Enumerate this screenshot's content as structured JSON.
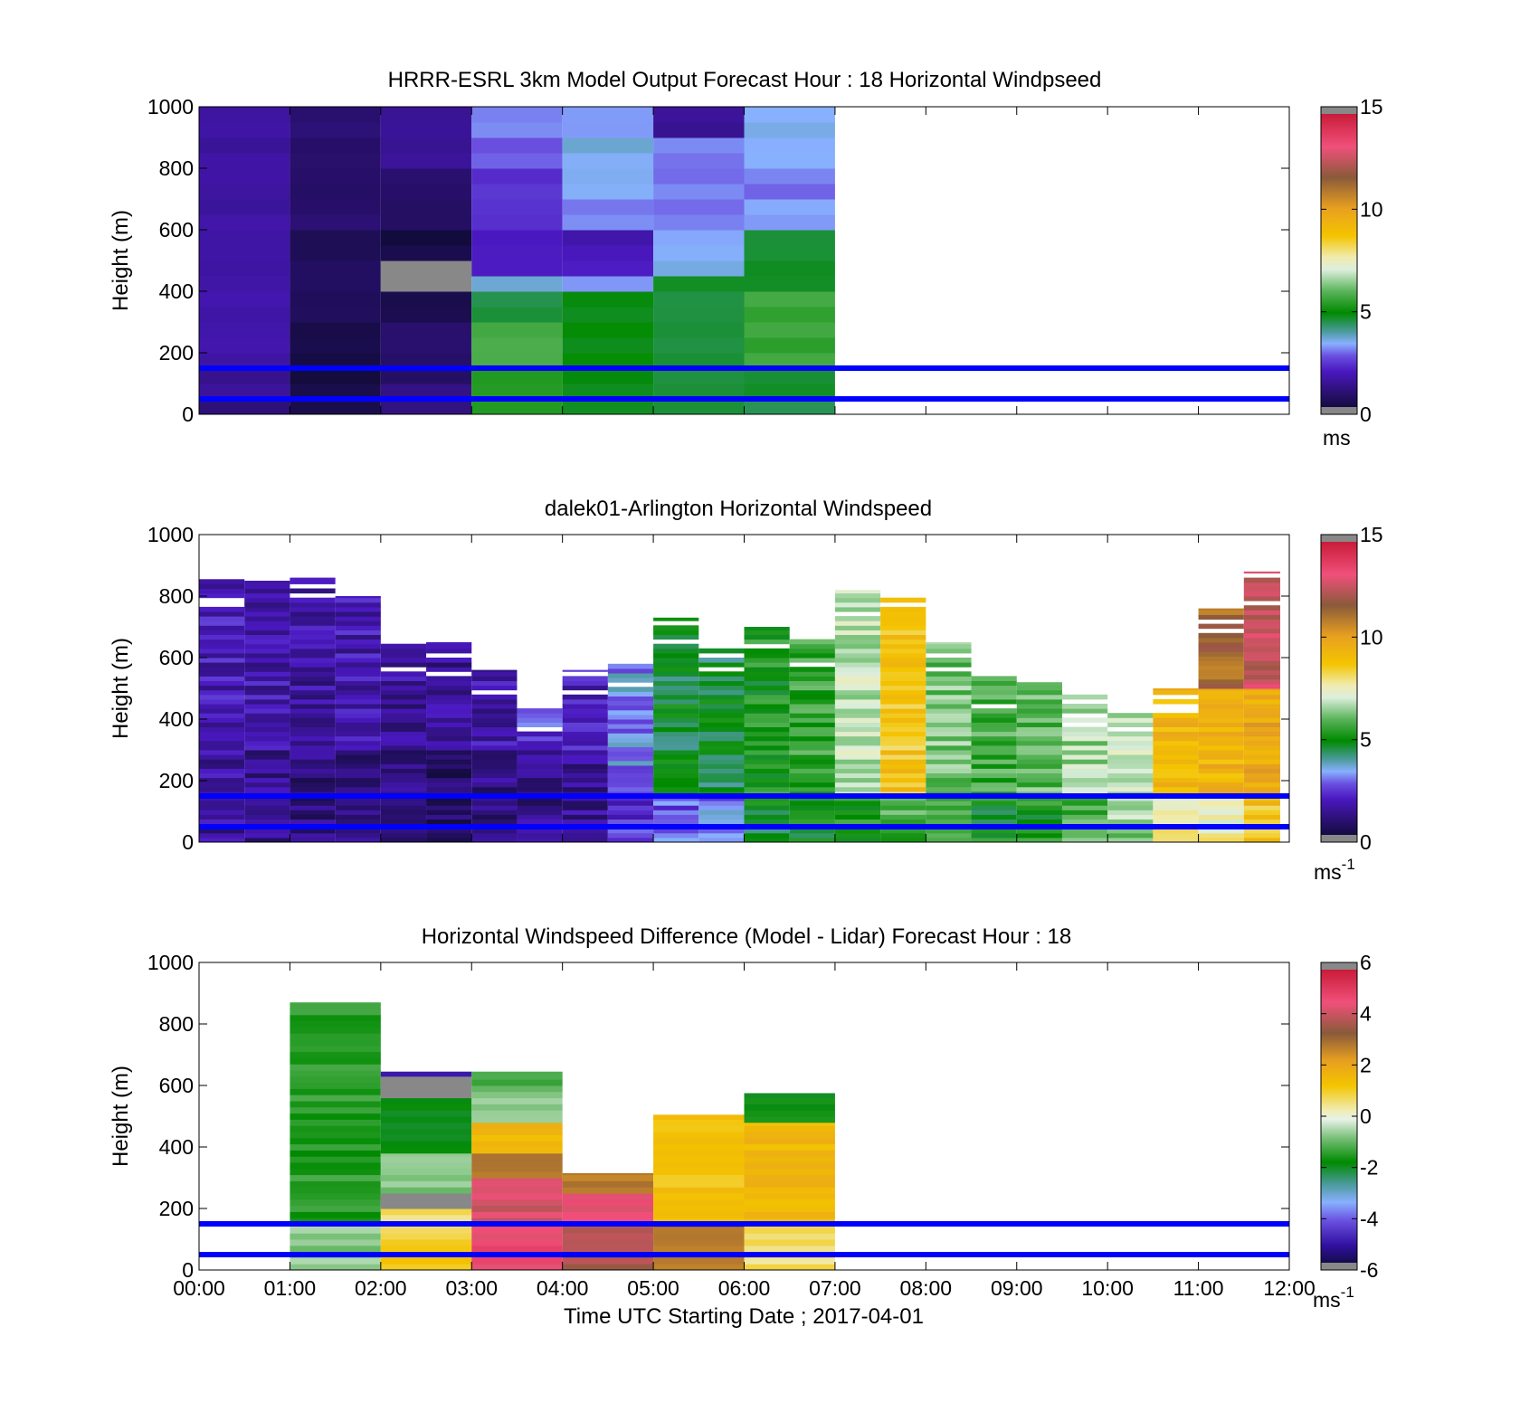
{
  "figure": {
    "xlabel": "Time UTC  Starting Date ; 2017-04-01",
    "x_tick_labels": [
      "00:00",
      "01:00",
      "02:00",
      "03:00",
      "04:00",
      "05:00",
      "06:00",
      "07:00",
      "08:00",
      "09:00",
      "10:00",
      "11:00",
      "12:00"
    ],
    "x_range_hours": [
      0,
      12
    ]
  },
  "chart_data": [
    {
      "type": "heatmap",
      "title": "HRRR-ESRL 3km Model Output   Forecast Hour : 18 Horizontal Windpseed",
      "ylabel": "Height (m)",
      "ylim": [
        0,
        1000
      ],
      "yticks": [
        0,
        200,
        400,
        600,
        800,
        1000
      ],
      "colorbar": {
        "min": 0,
        "max": 15,
        "ticks": [
          0,
          5,
          10,
          15
        ],
        "unit": "ms",
        "unit_superscript": ""
      },
      "reference_lines_m": [
        50,
        150
      ],
      "reference_line_color": "#0000ff",
      "columns": [
        {
          "x0": 0,
          "x1": 1,
          "ytop": 1000,
          "cells": [
            {
              "y0": 0,
              "y1": 50,
              "v": 1.3
            },
            {
              "y0": 50,
              "y1": 150,
              "v": 1.5
            },
            {
              "y0": 150,
              "y1": 400,
              "v": 1.8
            },
            {
              "y0": 400,
              "y1": 1000,
              "v": 1.7
            }
          ]
        },
        {
          "x0": 1,
          "x1": 2,
          "ytop": 1000,
          "cells": [
            {
              "y0": 0,
              "y1": 300,
              "v": 0.4
            },
            {
              "y0": 300,
              "y1": 600,
              "v": 0.7
            },
            {
              "y0": 600,
              "y1": 1000,
              "v": 1.0
            }
          ]
        },
        {
          "x0": 2,
          "x1": 3,
          "ytop": 1000,
          "cells": [
            {
              "y0": 0,
              "y1": 100,
              "v": 1.2
            },
            {
              "y0": 100,
              "y1": 300,
              "v": 1.0
            },
            {
              "y0": 300,
              "y1": 400,
              "v": 0.6
            },
            {
              "y0": 400,
              "y1": 500,
              "v": "missing"
            },
            {
              "y0": 500,
              "y1": 600,
              "v": 0.4
            },
            {
              "y0": 600,
              "y1": 800,
              "v": 0.9
            },
            {
              "y0": 800,
              "y1": 1000,
              "v": 1.6
            }
          ]
        },
        {
          "x0": 3,
          "x1": 4,
          "ytop": 1000,
          "cells": [
            {
              "y0": 0,
              "y1": 150,
              "v": 5.4
            },
            {
              "y0": 150,
              "y1": 300,
              "v": 5.8
            },
            {
              "y0": 300,
              "y1": 400,
              "v": 4.5
            },
            {
              "y0": 400,
              "y1": 450,
              "v": 3.6
            },
            {
              "y0": 450,
              "y1": 600,
              "v": 2.1
            },
            {
              "y0": 600,
              "y1": 800,
              "v": 2.4
            },
            {
              "y0": 800,
              "y1": 900,
              "v": 2.9
            },
            {
              "y0": 900,
              "y1": 1000,
              "v": 3.2
            }
          ]
        },
        {
          "x0": 4,
          "x1": 5,
          "ytop": 1000,
          "cells": [
            {
              "y0": 0,
              "y1": 150,
              "v": 4.8
            },
            {
              "y0": 150,
              "y1": 400,
              "v": 4.9
            },
            {
              "y0": 400,
              "y1": 450,
              "v": 3.4
            },
            {
              "y0": 450,
              "y1": 500,
              "v": 2.3
            },
            {
              "y0": 500,
              "y1": 600,
              "v": 1.9
            },
            {
              "y0": 600,
              "y1": 700,
              "v": 3.2
            },
            {
              "y0": 700,
              "y1": 800,
              "v": 3.5
            },
            {
              "y0": 800,
              "y1": 900,
              "v": 3.6
            },
            {
              "y0": 900,
              "y1": 1000,
              "v": 3.2
            }
          ]
        },
        {
          "x0": 5,
          "x1": 6,
          "ytop": 1000,
          "cells": [
            {
              "y0": 0,
              "y1": 150,
              "v": 4.5
            },
            {
              "y0": 150,
              "y1": 450,
              "v": 4.7
            },
            {
              "y0": 450,
              "y1": 500,
              "v": 3.7
            },
            {
              "y0": 500,
              "y1": 600,
              "v": 3.4
            },
            {
              "y0": 600,
              "y1": 900,
              "v": 3.1
            },
            {
              "y0": 900,
              "y1": 1000,
              "v": 1.6
            }
          ]
        },
        {
          "x0": 6,
          "x1": 7,
          "ytop": 1000,
          "cells": [
            {
              "y0": 0,
              "y1": 150,
              "v": 4.6
            },
            {
              "y0": 150,
              "y1": 400,
              "v": 5.6
            },
            {
              "y0": 400,
              "y1": 600,
              "v": 4.7
            },
            {
              "y0": 600,
              "y1": 700,
              "v": 3.4
            },
            {
              "y0": 700,
              "y1": 800,
              "v": 3.1
            },
            {
              "y0": 800,
              "y1": 900,
              "v": 3.4
            },
            {
              "y0": 900,
              "y1": 1000,
              "v": 3.6
            }
          ]
        }
      ]
    },
    {
      "type": "heatmap",
      "title": "dalek01-Arlington  Horizontal Windspeed",
      "ylabel": "Height (m)",
      "ylim": [
        0,
        1000
      ],
      "yticks": [
        0,
        200,
        400,
        600,
        800,
        1000
      ],
      "colorbar": {
        "min": 0,
        "max": 15,
        "ticks": [
          0,
          5,
          10,
          15
        ],
        "unit": "ms",
        "unit_superscript": "-1"
      },
      "reference_lines_m": [
        50,
        150
      ],
      "reference_line_color": "#0000ff",
      "columns": [
        {
          "x0": 0.0,
          "x1": 0.5,
          "ytop": 880,
          "cells": [
            {
              "y0": 0,
              "y1": 300,
              "v": 1.6
            },
            {
              "y0": 300,
              "y1": 880,
              "v": 2.0
            }
          ]
        },
        {
          "x0": 0.5,
          "x1": 1.0,
          "ytop": 850,
          "cells": [
            {
              "y0": 0,
              "y1": 300,
              "v": 1.4
            },
            {
              "y0": 300,
              "y1": 850,
              "v": 1.9
            }
          ]
        },
        {
          "x0": 1.0,
          "x1": 1.5,
          "ytop": 860,
          "cells": [
            {
              "y0": 0,
              "y1": 300,
              "v": 1.2
            },
            {
              "y0": 300,
              "y1": 860,
              "v": 1.7
            }
          ]
        },
        {
          "x0": 1.5,
          "x1": 2.0,
          "ytop": 800,
          "cells": [
            {
              "y0": 0,
              "y1": 300,
              "v": 1.3
            },
            {
              "y0": 300,
              "y1": 800,
              "v": 1.9
            }
          ]
        },
        {
          "x0": 2.0,
          "x1": 2.5,
          "ytop": 650,
          "cells": [
            {
              "y0": 0,
              "y1": 300,
              "v": 1.2
            },
            {
              "y0": 300,
              "y1": 650,
              "v": 1.6
            }
          ]
        },
        {
          "x0": 2.5,
          "x1": 3.0,
          "ytop": 650,
          "cells": [
            {
              "y0": 0,
              "y1": 300,
              "v": 1.0
            },
            {
              "y0": 300,
              "y1": 650,
              "v": 1.5
            }
          ]
        },
        {
          "x0": 3.0,
          "x1": 3.5,
          "ytop": 560,
          "cells": [
            {
              "y0": 0,
              "y1": 300,
              "v": 1.3
            },
            {
              "y0": 300,
              "y1": 560,
              "v": 1.8
            }
          ]
        },
        {
          "x0": 3.5,
          "x1": 4.0,
          "ytop": 450,
          "cells": [
            {
              "y0": 0,
              "y1": 300,
              "v": 1.4
            },
            {
              "y0": 300,
              "y1": 450,
              "v": 2.6
            }
          ]
        },
        {
          "x0": 4.0,
          "x1": 4.5,
          "ytop": 560,
          "cells": [
            {
              "y0": 0,
              "y1": 300,
              "v": 1.5
            },
            {
              "y0": 300,
              "y1": 560,
              "v": 2.1
            }
          ]
        },
        {
          "x0": 4.5,
          "x1": 5.0,
          "ytop": 580,
          "cells": [
            {
              "y0": 0,
              "y1": 250,
              "v": 2.4
            },
            {
              "y0": 250,
              "y1": 580,
              "v": 3.3
            }
          ]
        },
        {
          "x0": 5.0,
          "x1": 5.5,
          "ytop": 730,
          "cells": [
            {
              "y0": 0,
              "y1": 150,
              "v": 2.9
            },
            {
              "y0": 150,
              "y1": 730,
              "v": 4.7
            }
          ]
        },
        {
          "x0": 5.5,
          "x1": 6.0,
          "ytop": 660,
          "cells": [
            {
              "y0": 0,
              "y1": 150,
              "v": 3.2
            },
            {
              "y0": 150,
              "y1": 660,
              "v": 4.6
            }
          ]
        },
        {
          "x0": 6.0,
          "x1": 6.5,
          "ytop": 700,
          "cells": [
            {
              "y0": 0,
              "y1": 150,
              "v": 4.8
            },
            {
              "y0": 150,
              "y1": 700,
              "v": 5.2
            }
          ]
        },
        {
          "x0": 6.5,
          "x1": 7.0,
          "ytop": 660,
          "cells": [
            {
              "y0": 0,
              "y1": 150,
              "v": 5.0
            },
            {
              "y0": 150,
              "y1": 660,
              "v": 5.5
            }
          ]
        },
        {
          "x0": 7.0,
          "x1": 7.5,
          "ytop": 820,
          "cells": [
            {
              "y0": 0,
              "y1": 150,
              "v": 5.4
            },
            {
              "y0": 150,
              "y1": 820,
              "v": 6.8
            }
          ]
        },
        {
          "x0": 7.5,
          "x1": 8.0,
          "ytop": 800,
          "cells": [
            {
              "y0": 0,
              "y1": 150,
              "v": 5.8
            },
            {
              "y0": 150,
              "y1": 800,
              "v": 8.7
            }
          ]
        },
        {
          "x0": 8.0,
          "x1": 8.5,
          "ytop": 650,
          "cells": [
            {
              "y0": 0,
              "y1": 150,
              "v": 5.6
            },
            {
              "y0": 150,
              "y1": 650,
              "v": 6.2
            }
          ]
        },
        {
          "x0": 8.5,
          "x1": 9.0,
          "ytop": 540,
          "cells": [
            {
              "y0": 0,
              "y1": 150,
              "v": 5.0
            },
            {
              "y0": 150,
              "y1": 540,
              "v": 5.7
            }
          ]
        },
        {
          "x0": 9.0,
          "x1": 9.5,
          "ytop": 520,
          "cells": [
            {
              "y0": 0,
              "y1": 150,
              "v": 5.2
            },
            {
              "y0": 150,
              "y1": 520,
              "v": 6.0
            }
          ]
        },
        {
          "x0": 9.5,
          "x1": 10.0,
          "ytop": 480,
          "cells": [
            {
              "y0": 0,
              "y1": 150,
              "v": 5.9
            },
            {
              "y0": 150,
              "y1": 480,
              "v": 6.6
            }
          ]
        },
        {
          "x0": 10.0,
          "x1": 10.5,
          "ytop": 420,
          "cells": [
            {
              "y0": 0,
              "y1": 150,
              "v": 6.5
            },
            {
              "y0": 150,
              "y1": 420,
              "v": 6.9
            }
          ]
        },
        {
          "x0": 10.5,
          "x1": 11.0,
          "ytop": 500,
          "cells": [
            {
              "y0": 0,
              "y1": 150,
              "v": 7.8
            },
            {
              "y0": 150,
              "y1": 500,
              "v": 9.2
            }
          ]
        },
        {
          "x0": 11.0,
          "x1": 11.5,
          "ytop": 760,
          "cells": [
            {
              "y0": 0,
              "y1": 150,
              "v": 7.6
            },
            {
              "y0": 150,
              "y1": 500,
              "v": 9.3
            },
            {
              "y0": 500,
              "y1": 760,
              "v": 11.2
            }
          ]
        },
        {
          "x0": 11.5,
          "x1": 11.9,
          "ytop": 880,
          "cells": [
            {
              "y0": 0,
              "y1": 150,
              "v": 8.8
            },
            {
              "y0": 150,
              "y1": 500,
              "v": 9.7
            },
            {
              "y0": 500,
              "y1": 880,
              "v": 12.5
            }
          ]
        }
      ]
    },
    {
      "type": "heatmap",
      "title": "Horizontal Windspeed Difference (Model - Lidar) Forecast Hour : 18",
      "ylabel": "Height (m)",
      "ylim": [
        0,
        1000
      ],
      "yticks": [
        0,
        200,
        400,
        600,
        800,
        1000
      ],
      "colorbar": {
        "min": -6,
        "max": 6,
        "ticks": [
          -6,
          -4,
          -2,
          0,
          2,
          4,
          6
        ],
        "unit": "ms",
        "unit_superscript": "-1"
      },
      "reference_lines_m": [
        50,
        150
      ],
      "reference_line_color": "#0000ff",
      "columns": [
        {
          "x0": 1,
          "x1": 2,
          "ytop": 870,
          "cells": [
            {
              "y0": 0,
              "y1": 150,
              "v": -0.7
            },
            {
              "y0": 150,
              "y1": 870,
              "v": -1.5
            }
          ]
        },
        {
          "x0": 2,
          "x1": 3,
          "ytop": 645,
          "cells": [
            {
              "y0": 0,
              "y1": 100,
              "v": 1.2
            },
            {
              "y0": 100,
              "y1": 200,
              "v": 0.6
            },
            {
              "y0": 200,
              "y1": 250,
              "v": "missing"
            },
            {
              "y0": 250,
              "y1": 380,
              "v": -0.8
            },
            {
              "y0": 380,
              "y1": 560,
              "v": -2.0
            },
            {
              "y0": 560,
              "y1": 630,
              "v": "missing"
            },
            {
              "y0": 630,
              "y1": 645,
              "v": -5.0
            }
          ]
        },
        {
          "x0": 3,
          "x1": 4,
          "ytop": 645,
          "cells": [
            {
              "y0": 0,
              "y1": 150,
              "v": 4.5
            },
            {
              "y0": 150,
              "y1": 300,
              "v": 4.1
            },
            {
              "y0": 300,
              "y1": 380,
              "v": 2.6
            },
            {
              "y0": 380,
              "y1": 480,
              "v": 1.6
            },
            {
              "y0": 480,
              "y1": 580,
              "v": -0.6
            },
            {
              "y0": 580,
              "y1": 645,
              "v": -1.3
            }
          ]
        },
        {
          "x0": 4,
          "x1": 5,
          "ytop": 315,
          "cells": [
            {
              "y0": 0,
              "y1": 150,
              "v": 3.6
            },
            {
              "y0": 150,
              "y1": 250,
              "v": 4.3
            },
            {
              "y0": 250,
              "y1": 315,
              "v": 2.8
            }
          ]
        },
        {
          "x0": 5,
          "x1": 6,
          "ytop": 505,
          "cells": [
            {
              "y0": 0,
              "y1": 150,
              "v": 2.8
            },
            {
              "y0": 150,
              "y1": 505,
              "v": 1.2
            }
          ]
        },
        {
          "x0": 6,
          "x1": 7,
          "ytop": 575,
          "cells": [
            {
              "y0": 0,
              "y1": 150,
              "v": 0.6
            },
            {
              "y0": 150,
              "y1": 480,
              "v": 1.5
            },
            {
              "y0": 480,
              "y1": 575,
              "v": -1.8
            }
          ]
        }
      ]
    }
  ]
}
